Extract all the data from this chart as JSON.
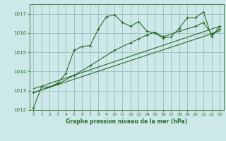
{
  "xlabel": "Graphe pression niveau de la mer (hPa)",
  "bg_color": "#cce8e8",
  "plot_bg_color": "#cce8e8",
  "line_color": "#2d6b2d",
  "grid_color": "#9bbfbf",
  "ylim": [
    1012,
    1017.5
  ],
  "yticks": [
    1012,
    1013,
    1014,
    1015,
    1016,
    1017
  ],
  "xlim": [
    -0.5,
    23.5
  ],
  "xticks": [
    0,
    1,
    2,
    3,
    4,
    5,
    6,
    7,
    8,
    9,
    10,
    11,
    12,
    13,
    14,
    15,
    16,
    17,
    18,
    19,
    20,
    21,
    22,
    23
  ],
  "main_x": [
    0,
    1,
    2,
    3,
    4,
    5,
    6,
    7,
    8,
    9,
    10,
    11,
    12,
    13,
    14,
    15,
    16,
    17,
    18,
    19,
    20,
    21,
    22,
    23
  ],
  "main_y": [
    1012.1,
    1013.2,
    1013.2,
    1013.4,
    1013.9,
    1015.1,
    1015.3,
    1015.35,
    1016.2,
    1016.85,
    1016.95,
    1016.55,
    1016.35,
    1016.6,
    1016.1,
    1016.0,
    1015.75,
    1015.8,
    1016.25,
    1016.8,
    1016.8,
    1017.1,
    1015.8,
    1016.35
  ],
  "line2_x": [
    0,
    3,
    5,
    7,
    10,
    12,
    13,
    14,
    15,
    16,
    18,
    20,
    21,
    22,
    23
  ],
  "line2_y": [
    1012.9,
    1013.35,
    1013.8,
    1014.3,
    1015.1,
    1015.5,
    1015.7,
    1015.9,
    1016.05,
    1015.8,
    1016.1,
    1016.35,
    1016.55,
    1015.95,
    1016.2
  ],
  "line3_x": [
    0,
    23
  ],
  "line3_y": [
    1012.9,
    1016.1
  ],
  "line4_x": [
    0,
    23
  ],
  "line4_y": [
    1013.1,
    1016.35
  ]
}
